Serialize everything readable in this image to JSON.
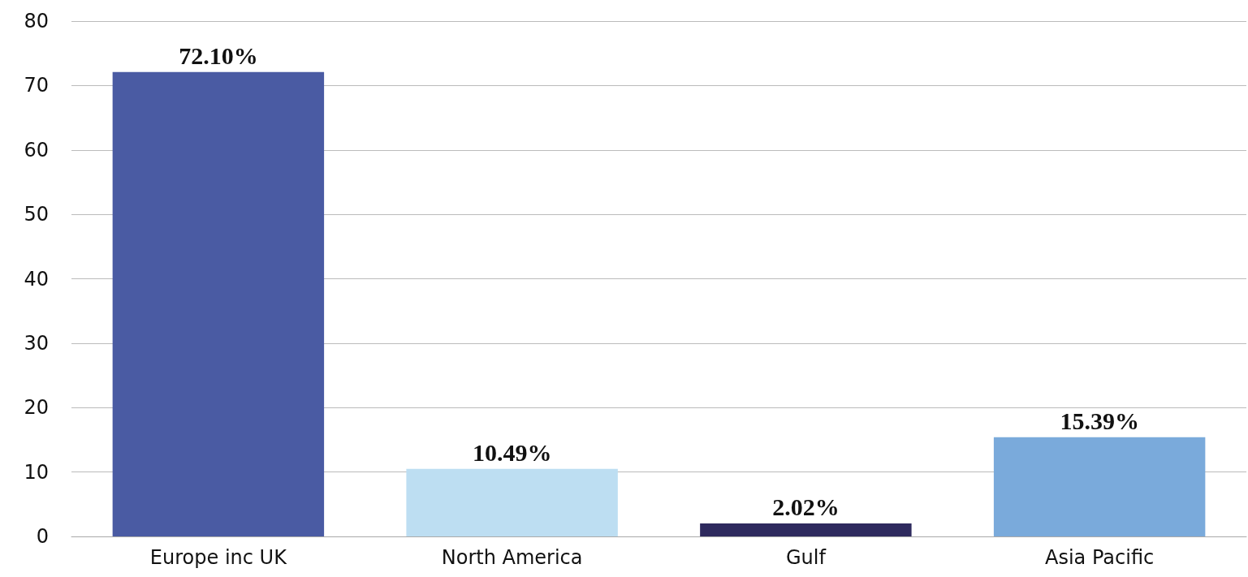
{
  "chart_data": {
    "type": "bar",
    "categories": [
      "Europe inc UK",
      "North America",
      "Gulf",
      "Asia Pacific"
    ],
    "values": [
      72.1,
      10.49,
      2.02,
      15.39
    ],
    "colors": [
      "#4a5ba3",
      "#bddef2",
      "#2e2a5e",
      "#7aaadb"
    ],
    "value_labels": [
      "72.10%",
      "10.49%",
      "2.02%",
      "15.39%"
    ],
    "ylim": [
      0,
      80
    ],
    "yticks": [
      0,
      10,
      20,
      30,
      40,
      50,
      60,
      70,
      80
    ],
    "grid": "y"
  }
}
